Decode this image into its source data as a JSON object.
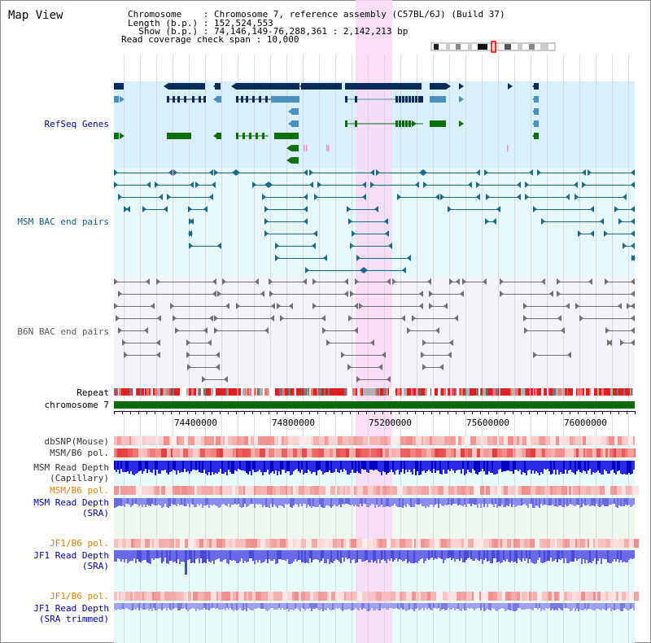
{
  "app_title": "Map View",
  "header": {
    "chromosome_label": "Chromosome    : Chromosome 7, reference assembly (C57BL/6J) (Build 37)",
    "length_label": "Length (b.p.) : 152,524,553",
    "show_label": "  Show (b.p.) : 74,146,149-76,288,361 : 2,142,213 bp",
    "coverage_label": "Read coverage check span : 10,000"
  },
  "tracks": {
    "refseq": "RefSeq Genes",
    "msm_bac": "MSM BAC end pairs",
    "b6n_bac": "B6N BAC end pairs",
    "repeat": "Repeat",
    "chromosome": "chromosome 7",
    "dbsnp": "dbSNP(Mouse)",
    "msm_b6_pol_1": "MSM/B6 pol.",
    "msm_depth_cap_1": "MSM Read Depth",
    "msm_depth_cap_2": "(Capillary)",
    "msm_b6_pol_2": "MSM/B6 pol.",
    "msm_depth_sra_1": "MSM Read Depth",
    "msm_depth_sra_2": "(SRA)",
    "jf1_b6_pol_1": "JF1/B6 pol.",
    "jf1_depth_sra_1": "JF1 Read Depth",
    "jf1_depth_sra_2": "(SRA)",
    "jf1_b6_pol_2": "JF1/B6 pol.",
    "jf1_depth_trim_1": "JF1 Read Depth",
    "jf1_depth_trim_2": "(SRA trimmed)"
  },
  "ruler_ticks": [
    "74400000",
    "74800000",
    "75200000",
    "75600000",
    "76000000"
  ],
  "colors": {
    "refseq_bg": "#d8f0fa",
    "msm_bg": "#e6f8fa",
    "b6n_bg": "#f4f4f8",
    "highlight": "#f8d8f4",
    "gene_dark": "#0a2a5a",
    "gene_light": "#4a90c0",
    "gene_green": "#0f6e0f",
    "bac_msm": "#1a6a8a",
    "bac_b6n": "#707070",
    "chromosome_bar": "#0a6a0a",
    "label_blue": "#0000aa",
    "label_orange": "#e08000",
    "label_black": "#000000",
    "depth_blue": "#2020e0",
    "depth_light": "#7a7ae8"
  }
}
